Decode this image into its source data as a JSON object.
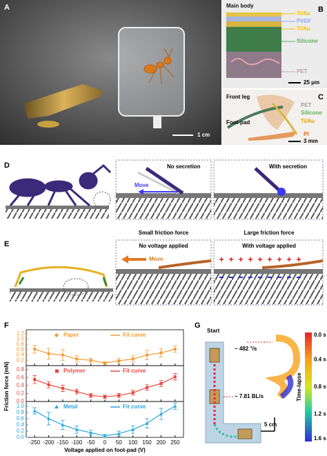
{
  "panels": {
    "a": {
      "label": "A",
      "scale": "1 cm"
    },
    "b": {
      "label": "B",
      "title": "Main body",
      "layers": [
        "Ti/Au",
        "PVDF",
        "Ti/Au",
        "Silicone",
        "PET"
      ],
      "scale": "25 μm"
    },
    "c": {
      "label": "C",
      "title": "Front leg",
      "layers": [
        "PET",
        "Silicone",
        "Ti/Au"
      ],
      "part": "Foot-pad",
      "base": "PI",
      "scale": "3 mm"
    },
    "d": {
      "label": "D",
      "left": "No secretion",
      "move": "Move",
      "right": "With secretion"
    },
    "captions": [
      "Small friction force",
      "Large friction force"
    ],
    "e": {
      "label": "E",
      "left": "No voltage applied",
      "move": "Move",
      "right": "With voltage applied"
    },
    "f": {
      "label": "F",
      "ylabel": "Friction force (mN)",
      "xlabel": "Voltage applied on foot-pad (V)",
      "xlim": [
        -280,
        280
      ],
      "xticks": [
        -250,
        -200,
        -150,
        -100,
        -50,
        0,
        50,
        100,
        150,
        200,
        250
      ],
      "x": [
        -250,
        -200,
        -150,
        -100,
        -50,
        0,
        50,
        100,
        150,
        200,
        250
      ],
      "subplots": [
        {
          "name": "Paper",
          "fit_name": "Fit curve",
          "color": "#f39a2e",
          "marker": "circle",
          "ylim": [
            0,
            1.35
          ],
          "yticks": [
            0.2,
            0.4,
            0.6,
            0.8,
            {
              "value": 1.0,
              "label": "1.0"
            },
            1.2
          ],
          "values": [
            0.62,
            0.45,
            0.4,
            0.25,
            0.2,
            0.1,
            0.18,
            0.25,
            0.4,
            0.48,
            0.62
          ],
          "errors": [
            0.15,
            0.2,
            0.2,
            0.12,
            0.08,
            0.05,
            0.1,
            0.12,
            0.18,
            0.15,
            0.12
          ]
        },
        {
          "name": "Polymer",
          "fit_name": "Fit curve",
          "color": "#e8453c",
          "marker": "square",
          "ylim": [
            0,
            0.9
          ],
          "yticks": [
            {
              "value": 0.0,
              "label": "0.0"
            },
            0.2,
            0.4,
            0.6,
            0.8
          ],
          "values": [
            0.55,
            0.42,
            0.33,
            0.25,
            0.15,
            0.12,
            0.15,
            0.22,
            0.35,
            0.45,
            0.62
          ],
          "errors": [
            0.1,
            0.08,
            0.08,
            0.06,
            0.05,
            0.04,
            0.05,
            0.06,
            0.07,
            0.08,
            0.08
          ]
        },
        {
          "name": "Metal",
          "fit_name": "Fit curve",
          "color": "#29a3dc",
          "marker": "triangle",
          "ylim": [
            0,
            1.15
          ],
          "yticks": [
            {
              "value": 0.0,
              "label": "0.0"
            },
            0.2,
            0.4,
            0.6,
            0.8,
            {
              "value": 1.0,
              "label": "1.0"
            }
          ],
          "values": [
            0.85,
            0.6,
            0.4,
            0.25,
            0.15,
            0.05,
            0.12,
            0.25,
            0.45,
            0.75,
            1.0
          ],
          "errors": [
            0.1,
            0.2,
            0.15,
            0.12,
            0.08,
            0.05,
            0.08,
            0.12,
            0.15,
            0.18,
            0.1
          ]
        }
      ]
    },
    "g": {
      "label": "G",
      "start": "Start",
      "angular": "~ 482 °/s",
      "linear": "~ 7.81 BL/s",
      "scale": "5 cm",
      "colorbar_title": "Time-lapse",
      "colorbar_labels": [
        "0.0 s",
        "0.4 s",
        "0.8 s",
        "1.2 s",
        "1.6 s"
      ]
    }
  }
}
